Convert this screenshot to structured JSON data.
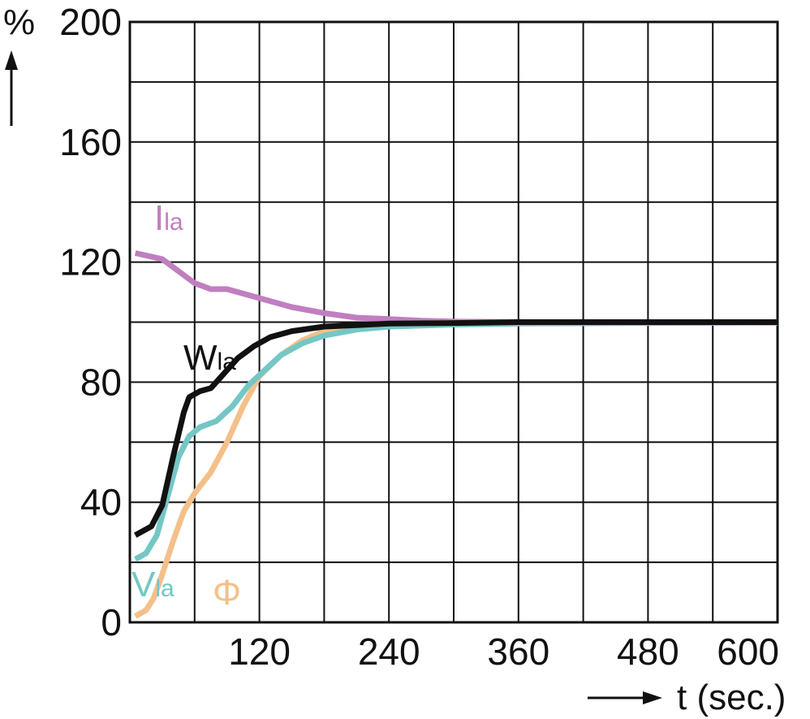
{
  "chart_data": {
    "type": "line",
    "ylabel": "%",
    "xlabel": "t (sec.)",
    "xlim": [
      0,
      600
    ],
    "ylim": [
      0,
      200
    ],
    "x_ticks": [
      120,
      240,
      360,
      480,
      600
    ],
    "y_ticks": [
      0,
      40,
      80,
      120,
      160,
      200
    ],
    "grid": true,
    "series": [
      {
        "label_main": "I",
        "label_sub": "la",
        "color": "#c07fc0",
        "points": [
          [
            5,
            123
          ],
          [
            30,
            121
          ],
          [
            60,
            113
          ],
          [
            75,
            111
          ],
          [
            90,
            111
          ],
          [
            110,
            109
          ],
          [
            150,
            105
          ],
          [
            180,
            103
          ],
          [
            210,
            101.5
          ],
          [
            240,
            101
          ],
          [
            270,
            100.5
          ],
          [
            300,
            100.2
          ],
          [
            360,
            100
          ],
          [
            420,
            100
          ]
        ]
      },
      {
        "label_main": "W",
        "label_sub": "la",
        "color": "#111111",
        "points": [
          [
            5,
            29
          ],
          [
            20,
            32
          ],
          [
            30,
            39
          ],
          [
            40,
            55
          ],
          [
            50,
            70
          ],
          [
            55,
            75
          ],
          [
            65,
            77
          ],
          [
            75,
            78
          ],
          [
            85,
            82
          ],
          [
            100,
            88
          ],
          [
            115,
            92
          ],
          [
            130,
            95
          ],
          [
            150,
            97
          ],
          [
            180,
            98.5
          ],
          [
            210,
            99
          ],
          [
            240,
            99.5
          ],
          [
            300,
            99.7
          ],
          [
            360,
            100
          ],
          [
            420,
            100
          ],
          [
            480,
            100
          ],
          [
            600,
            100
          ]
        ]
      },
      {
        "label_main": "V",
        "label_sub": "la",
        "color": "#74c7c5",
        "points": [
          [
            5,
            21
          ],
          [
            15,
            23
          ],
          [
            25,
            29
          ],
          [
            35,
            42
          ],
          [
            45,
            55
          ],
          [
            55,
            62
          ],
          [
            65,
            65
          ],
          [
            80,
            67
          ],
          [
            95,
            72
          ],
          [
            110,
            79
          ],
          [
            125,
            84
          ],
          [
            140,
            89
          ],
          [
            160,
            93
          ],
          [
            180,
            95.5
          ],
          [
            210,
            97.5
          ],
          [
            240,
            98.5
          ],
          [
            300,
            99.2
          ],
          [
            360,
            99.5
          ],
          [
            480,
            99.7
          ],
          [
            600,
            99.8
          ]
        ]
      },
      {
        "label_main": "Φ",
        "label_sub": "",
        "color": "#f4c08a",
        "points": [
          [
            5,
            2
          ],
          [
            15,
            4
          ],
          [
            22,
            8
          ],
          [
            30,
            16
          ],
          [
            40,
            27
          ],
          [
            50,
            37
          ],
          [
            60,
            43
          ],
          [
            75,
            50
          ],
          [
            90,
            60
          ],
          [
            105,
            72
          ],
          [
            120,
            82
          ],
          [
            140,
            89
          ],
          [
            160,
            94
          ],
          [
            180,
            97
          ],
          [
            210,
            98.5
          ],
          [
            240,
            99.3
          ],
          [
            300,
            99.8
          ],
          [
            360,
            100
          ],
          [
            480,
            100
          ],
          [
            600,
            100
          ]
        ]
      }
    ]
  }
}
